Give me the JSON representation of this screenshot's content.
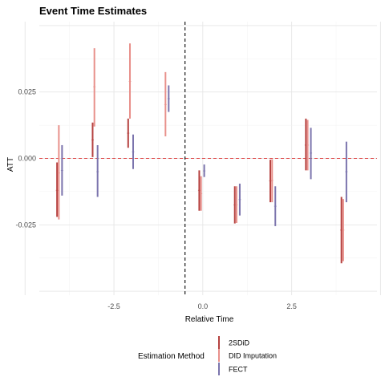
{
  "chart_data": {
    "type": "errorbar",
    "title": "Event Time Estimates",
    "xlabel": "Relative Time",
    "ylabel": "ATT",
    "xlim": [
      -4.6,
      4.9
    ],
    "ylim": [
      -0.0515,
      0.0515
    ],
    "x_ticks": [
      -2.5,
      0.0,
      2.5
    ],
    "x_tick_labels": [
      "-2.5",
      "0.0",
      "2.5"
    ],
    "y_ticks": [
      -0.025,
      0.0,
      0.025
    ],
    "y_tick_labels": [
      "-0.025",
      "0.000",
      "0.025"
    ],
    "grid": true,
    "reference_lines": [
      {
        "axis": "y",
        "value": 0,
        "style": "dashed",
        "color": "#e04a4a"
      },
      {
        "axis": "x",
        "value": -0.5,
        "style": "dashed",
        "color": "#000000"
      }
    ],
    "legend": {
      "title": "Estimation Method",
      "placement": "bottom",
      "entries": [
        "2SDiD",
        "DID Imputation",
        "FECT"
      ]
    },
    "series": [
      {
        "name": "2SDiD",
        "color": "#b5413f",
        "offset": -0.1,
        "points": [
          {
            "x": -4,
            "y": -0.012,
            "lo": -0.022,
            "hi": -0.0015
          },
          {
            "x": -3,
            "y": 0.007,
            "lo": 0.0005,
            "hi": 0.0135
          },
          {
            "x": -2,
            "y": 0.0095,
            "lo": 0.004,
            "hi": 0.015
          },
          {
            "x": 0,
            "y": -0.012,
            "lo": -0.0197,
            "hi": -0.0045
          },
          {
            "x": 1,
            "y": -0.0175,
            "lo": -0.0245,
            "hi": -0.0105
          },
          {
            "x": 2,
            "y": -0.0085,
            "lo": -0.0165,
            "hi": -0.0005
          },
          {
            "x": 3,
            "y": 0.005,
            "lo": -0.0045,
            "hi": 0.015
          },
          {
            "x": 4,
            "y": -0.027,
            "lo": -0.0395,
            "hi": -0.0145
          }
        ]
      },
      {
        "name": "DID Imputation",
        "color": "#e8908b",
        "offset": -0.05,
        "points": [
          {
            "x": -4,
            "y": -0.0055,
            "lo": -0.023,
            "hi": 0.0125
          },
          {
            "x": -3,
            "y": 0.027,
            "lo": 0.012,
            "hi": 0.0415
          },
          {
            "x": -2,
            "y": 0.029,
            "lo": 0.015,
            "hi": 0.0433
          },
          {
            "x": -1,
            "y": 0.0203,
            "lo": 0.0083,
            "hi": 0.0325
          },
          {
            "x": 0,
            "y": -0.0133,
            "lo": -0.0197,
            "hi": -0.0067
          },
          {
            "x": 1,
            "y": -0.0175,
            "lo": -0.0243,
            "hi": -0.0105
          },
          {
            "x": 2,
            "y": -0.0083,
            "lo": -0.0165,
            "hi": -0.0003
          },
          {
            "x": 3,
            "y": 0.005,
            "lo": -0.0045,
            "hi": 0.0145
          },
          {
            "x": 4,
            "y": -0.027,
            "lo": -0.0387,
            "hi": -0.0153
          }
        ]
      },
      {
        "name": "FECT",
        "color": "#7b74ad",
        "offset": 0.04,
        "points": [
          {
            "x": -4,
            "y": -0.0045,
            "lo": -0.014,
            "hi": 0.005
          },
          {
            "x": -3,
            "y": -0.005,
            "lo": -0.0145,
            "hi": 0.005
          },
          {
            "x": -2,
            "y": 0.0025,
            "lo": -0.004,
            "hi": 0.009
          },
          {
            "x": -1,
            "y": 0.0225,
            "lo": 0.0175,
            "hi": 0.0275
          },
          {
            "x": 0,
            "y": -0.0047,
            "lo": -0.007,
            "hi": -0.0023
          },
          {
            "x": 1,
            "y": -0.0155,
            "lo": -0.0215,
            "hi": -0.0095
          },
          {
            "x": 2,
            "y": -0.018,
            "lo": -0.0255,
            "hi": -0.0105
          },
          {
            "x": 3,
            "y": 0.002,
            "lo": -0.0078,
            "hi": 0.0115
          },
          {
            "x": 4,
            "y": -0.005,
            "lo": -0.0165,
            "hi": 0.0063
          }
        ]
      }
    ]
  }
}
